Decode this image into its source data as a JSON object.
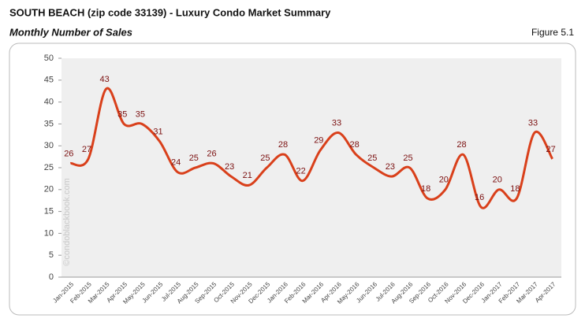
{
  "chart_data": {
    "type": "line",
    "title": "SOUTH BEACH (zip code 33139) - Luxury Condo Market Summary",
    "subtitle": "Monthly Number of Sales",
    "figure_label": "Figure 5.1",
    "watermark": "©condoblackbook.com",
    "categories": [
      "Jan-2015",
      "Feb-2015",
      "Mar-2015",
      "Apr-2015",
      "May-2015",
      "Jun-2015",
      "Jul-2015",
      "Aug-2015",
      "Sep-2015",
      "Oct-2015",
      "Nov-2015",
      "Dec-2015",
      "Jan-2016",
      "Feb-2016",
      "Mar-2016",
      "Apr-2016",
      "May-2016",
      "Jun-2016",
      "Jul-2016",
      "Aug-2016",
      "Sep-2016",
      "Oct-2016",
      "Nov-2016",
      "Dec-2016",
      "Jan-2017",
      "Feb-2017",
      "Mar-2017",
      "Apr-2017"
    ],
    "values": [
      26,
      27,
      43,
      35,
      35,
      31,
      24,
      25,
      26,
      23,
      21,
      25,
      28,
      22,
      29,
      33,
      28,
      25,
      23,
      25,
      18,
      20,
      28,
      16,
      20,
      18,
      33,
      27
    ],
    "color": "#d9401b",
    "ylim": [
      0,
      50
    ],
    "yticks": [
      0,
      5,
      10,
      15,
      20,
      25,
      30,
      35,
      40,
      45,
      50
    ]
  }
}
